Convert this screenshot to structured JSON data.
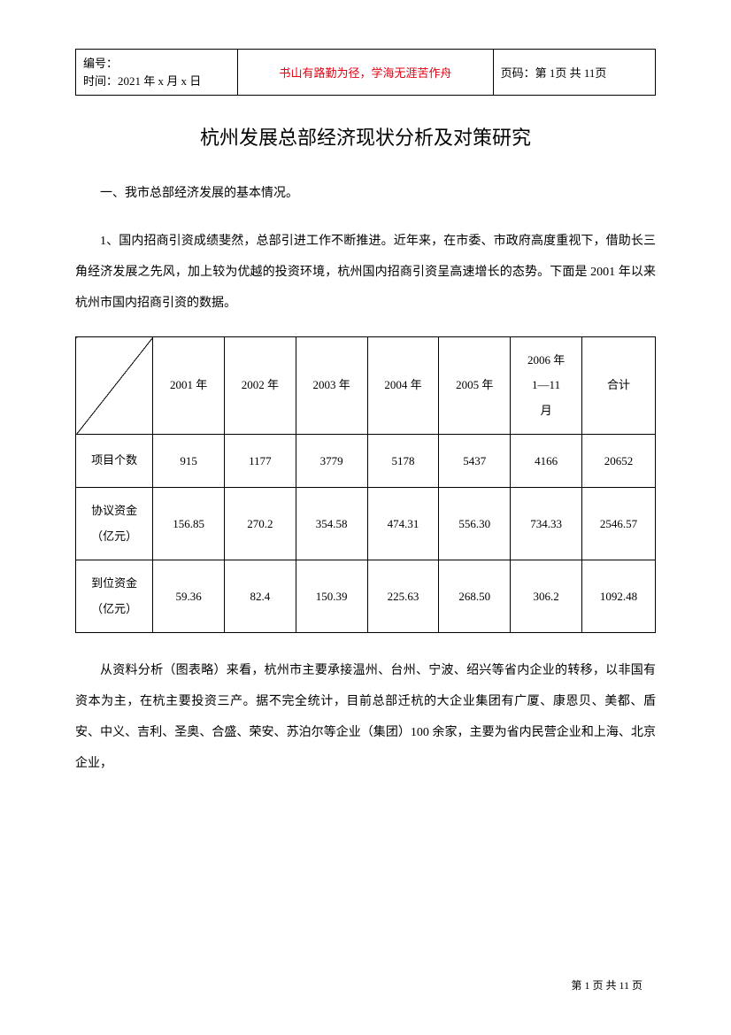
{
  "header": {
    "docid_label": "编号：",
    "time_label": "时间：",
    "time_value": "2021 年 x 月 x 日",
    "motto": "书山有路勤为径，学海无涯苦作舟",
    "page_label": "页码：",
    "page_value": "第 1页 共 11页"
  },
  "title": "杭州发展总部经济现状分析及对策研究",
  "section1": "一、我市总部经济发展的基本情况。",
  "paragraph1": "1、国内招商引资成绩斐然，总部引进工作不断推进。近年来，在市委、市政府高度重视下，借助长三角经济发展之先风，加上较为优越的投资环境，杭州国内招商引资呈高速增长的态势。下面是 2001 年以来杭州市国内招商引资的数据。",
  "table": {
    "type": "table",
    "columns": [
      "2001 年",
      "2002 年",
      "2003 年",
      "2004 年",
      "2005 年",
      "2006 年\n1—11\n月",
      "合计"
    ],
    "rows": [
      {
        "label": "项目个数",
        "values": [
          "915",
          "1177",
          "3779",
          "5178",
          "5437",
          "4166",
          "20652"
        ]
      },
      {
        "label": "协议资金\n（亿元）",
        "values": [
          "156.85",
          "270.2",
          "354.58",
          "474.31",
          "556.30",
          "734.33",
          "2546.57"
        ]
      },
      {
        "label": "到位资金\n（亿元）",
        "values": [
          "59.36",
          "82.4",
          "150.39",
          "225.63",
          "268.50",
          "306.2",
          "1092.48"
        ]
      }
    ],
    "border_color": "#000000",
    "background_color": "#ffffff"
  },
  "paragraph2": "从资料分析（图表略）来看，杭州市主要承接温州、台州、宁波、绍兴等省内企业的转移，以非国有资本为主，在杭主要投资三产。据不完全统计，目前总部迁杭的大企业集团有广厦、康恩贝、美都、盾安、中义、吉利、圣奥、合盛、荣安、苏泊尔等企业（集团）100 余家，主要为省内民营企业和上海、北京企业，",
  "footer": "第 1 页 共 11 页",
  "colors": {
    "motto_red": "#e60012",
    "text": "#000000",
    "border": "#000000",
    "background": "#ffffff"
  },
  "fonts": {
    "body_family": "SimSun",
    "title_size_pt": 16,
    "body_size_pt": 10.5,
    "header_size_pt": 10
  }
}
